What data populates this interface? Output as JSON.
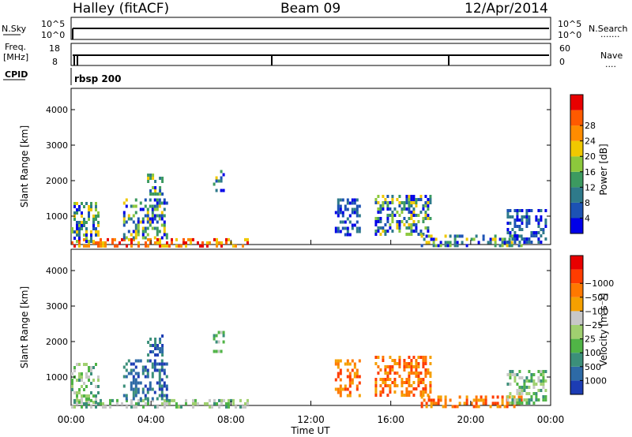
{
  "header": {
    "station": "Halley (fitACF)",
    "beam": "Beam 09",
    "date": "12/Apr/2014"
  },
  "summary_panels": {
    "nsky_label": "N.Sky",
    "nsky_ticks": [
      "10^5",
      "10^0"
    ],
    "nsearch_label": "N.Search",
    "nsearch_ticks": [
      "10^5",
      "10^0"
    ],
    "freq_label_line1": "Freq.",
    "freq_label_line2": "[MHz]",
    "freq_ticks": [
      "18",
      "8"
    ],
    "nave_label": "Nave",
    "nave_ticks": [
      "60",
      "0"
    ],
    "cpid_label": "CPID",
    "cpid_value": "rbsp 200"
  },
  "chart_data": [
    {
      "type": "heatmap",
      "title": "",
      "ylabel": "Slant Range [km]",
      "yticks": [
        1000,
        2000,
        3000,
        4000
      ],
      "ylim": [
        200,
        4600
      ],
      "xlabel": "Time UT",
      "xticks": [
        "00:00",
        "04:00",
        "08:00",
        "12:00",
        "16:00",
        "20:00",
        "00:00"
      ],
      "xlim_hours": [
        0,
        24
      ],
      "colorbar": {
        "label": "Power [dB]",
        "ticks": [
          "4",
          "8",
          "12",
          "16",
          "20",
          "24",
          "28"
        ],
        "colors": [
          "#0000e8",
          "#1c52b4",
          "#2e7a8a",
          "#3c9a60",
          "#8cc83c",
          "#f0c800",
          "#ff8c00",
          "#ff5a00",
          "#e80000"
        ]
      },
      "features": [
        {
          "t_start": 0.0,
          "t_end": 8.8,
          "r_start": 200,
          "r_end": 380,
          "level": "high"
        },
        {
          "t_start": 0.0,
          "t_end": 1.4,
          "r_start": 300,
          "r_end": 1400,
          "level": "mid"
        },
        {
          "t_start": 2.6,
          "t_end": 4.8,
          "r_start": 400,
          "r_end": 1500,
          "level": "mid"
        },
        {
          "t_start": 3.8,
          "t_end": 4.6,
          "r_start": 1600,
          "r_end": 2200,
          "level": "mid"
        },
        {
          "t_start": 7.1,
          "t_end": 7.6,
          "r_start": 1700,
          "r_end": 2300,
          "level": "mid"
        },
        {
          "t_start": 13.2,
          "t_end": 14.4,
          "r_start": 500,
          "r_end": 1500,
          "level": "low"
        },
        {
          "t_start": 15.2,
          "t_end": 18.0,
          "r_start": 500,
          "r_end": 1600,
          "level": "mid"
        },
        {
          "t_start": 17.5,
          "t_end": 22.5,
          "r_start": 200,
          "r_end": 480,
          "level": "mid"
        },
        {
          "t_start": 21.8,
          "t_end": 23.8,
          "r_start": 300,
          "r_end": 1200,
          "level": "low"
        }
      ]
    },
    {
      "type": "heatmap",
      "title": "",
      "ylabel": "Slant Range [km]",
      "yticks": [
        1000,
        2000,
        3000,
        4000
      ],
      "ylim": [
        200,
        4600
      ],
      "xlabel": "Time UT",
      "xticks": [
        "00:00",
        "04:00",
        "08:00",
        "12:00",
        "16:00",
        "20:00",
        "00:00"
      ],
      "xlim_hours": [
        0,
        24
      ],
      "colorbar": {
        "label": "Velocity [m s⁻¹]",
        "ticks": [
          "1000",
          "500",
          "100",
          "25",
          "−25",
          "−100",
          "−500",
          "−1000"
        ],
        "colors": [
          "#1c3cb4",
          "#2d6aa6",
          "#3b8f7a",
          "#50b446",
          "#a0d070",
          "#c8c8c8",
          "#f5a000",
          "#ff7800",
          "#ff3c00",
          "#e80000"
        ]
      },
      "features": [
        {
          "t_start": 0.0,
          "t_end": 8.8,
          "r_start": 200,
          "r_end": 380,
          "level": "low"
        },
        {
          "t_start": 0.0,
          "t_end": 1.4,
          "r_start": 300,
          "r_end": 1400,
          "level": "low"
        },
        {
          "t_start": 2.6,
          "t_end": 4.8,
          "r_start": 400,
          "r_end": 1500,
          "level": "high"
        },
        {
          "t_start": 3.8,
          "t_end": 4.6,
          "r_start": 1600,
          "r_end": 2200,
          "level": "high"
        },
        {
          "t_start": 7.1,
          "t_end": 7.6,
          "r_start": 1700,
          "r_end": 2300,
          "level": "low"
        },
        {
          "t_start": 13.2,
          "t_end": 14.4,
          "r_start": 500,
          "r_end": 1500,
          "level": "neg"
        },
        {
          "t_start": 15.2,
          "t_end": 18.0,
          "r_start": 500,
          "r_end": 1600,
          "level": "neg"
        },
        {
          "t_start": 17.5,
          "t_end": 22.5,
          "r_start": 200,
          "r_end": 480,
          "level": "neg"
        },
        {
          "t_start": 21.8,
          "t_end": 23.8,
          "r_start": 300,
          "r_end": 1200,
          "level": "low"
        }
      ]
    }
  ]
}
